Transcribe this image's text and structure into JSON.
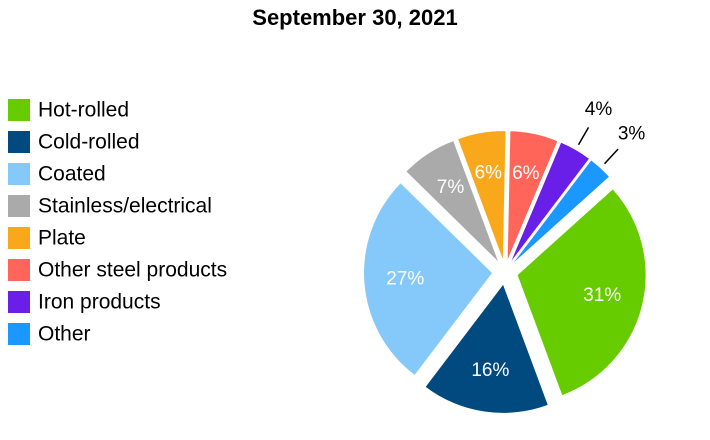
{
  "chart_data": {
    "type": "pie",
    "title": "September 30, 2021",
    "categories": [
      "Hot-rolled",
      "Cold-rolled",
      "Coated",
      "Stainless/electrical",
      "Plate",
      "Other steel products",
      "Iron products",
      "Other"
    ],
    "values": [
      31,
      16,
      27,
      7,
      6,
      6,
      4,
      3
    ],
    "value_labels": [
      "31%",
      "16%",
      "27%",
      "7%",
      "6%",
      "6%",
      "4%",
      "3%"
    ],
    "colors": [
      "#66cc00",
      "#004a80",
      "#85c9fa",
      "#aaaaaa",
      "#f9a81b",
      "#ff6659",
      "#6a1fe8",
      "#1a98ff"
    ],
    "legend": "left"
  }
}
